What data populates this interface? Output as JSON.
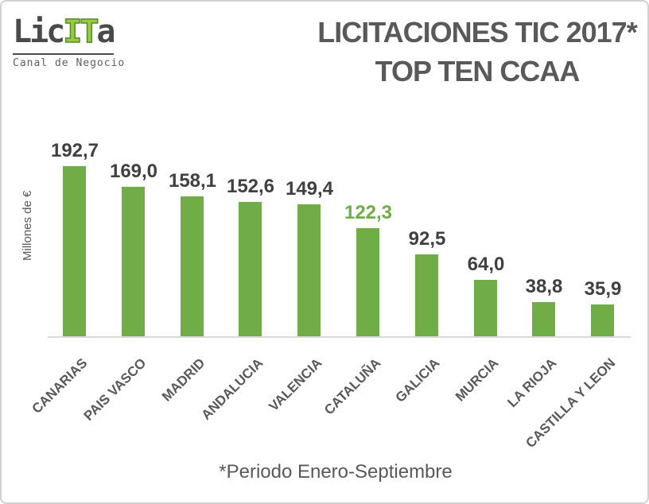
{
  "logo": {
    "text_prefix": "Lic",
    "text_highlight": "IT",
    "text_suffix": "a",
    "subtitle": "Canal de Negocio"
  },
  "title": {
    "line1": "LICITACIONES TIC 2017*",
    "line2": "TOP TEN CCAA"
  },
  "colors": {
    "bar": "#70ad47",
    "highlight_label": "#70ad47",
    "value_label": "#404040",
    "text_gray": "#595959",
    "logo_dark": "#4a4a4a",
    "logo_green": "#9bcb3c",
    "axis_line": "#d9d9d9"
  },
  "chart_data": {
    "type": "bar",
    "title": "LICITACIONES TIC 2017* TOP TEN CCAA",
    "ylabel": "Millones de €",
    "xlabel": "",
    "categories": [
      "CANARIAS",
      "PAIS VASCO",
      "MADRID",
      "ANDALUCIA",
      "VALENCIA",
      "CATALUÑA",
      "GALICIA",
      "MURCIA",
      "LA RIOJA",
      "CASTILLA Y LEON"
    ],
    "values": [
      192.7,
      169.0,
      158.1,
      152.6,
      149.4,
      122.3,
      92.5,
      64.0,
      38.8,
      35.9
    ],
    "value_labels": [
      "192,7",
      "169,0",
      "158,1",
      "152,6",
      "149,4",
      "122,3",
      "92,5",
      "64,0",
      "38,8",
      "35,9"
    ],
    "highlight_index": 5,
    "ylim": [
      0,
      200
    ],
    "grid": false,
    "legend": false,
    "footnote": "*Periodo Enero-Septiembre"
  }
}
